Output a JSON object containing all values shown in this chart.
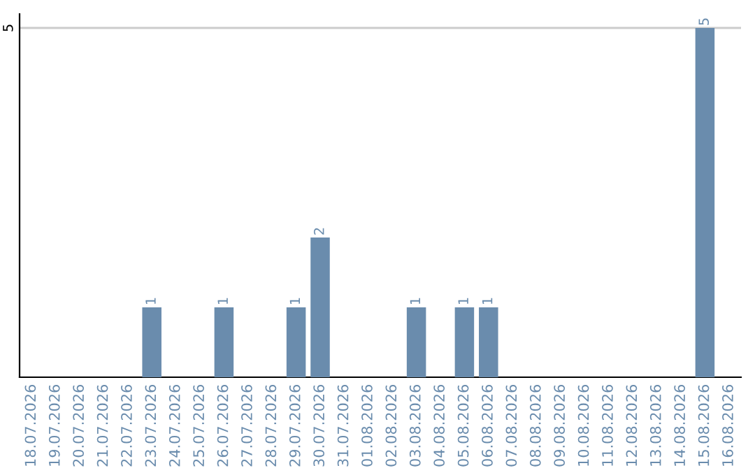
{
  "chart_data": {
    "type": "bar",
    "categories": [
      "18.07.2026",
      "19.07.2026",
      "20.07.2026",
      "21.07.2026",
      "22.07.2026",
      "23.07.2026",
      "24.07.2026",
      "25.07.2026",
      "26.07.2026",
      "27.07.2026",
      "28.07.2026",
      "29.07.2026",
      "30.07.2026",
      "31.07.2026",
      "01.08.2026",
      "02.08.2026",
      "03.08.2026",
      "04.08.2026",
      "05.08.2026",
      "06.08.2026",
      "07.08.2026",
      "08.08.2026",
      "09.08.2026",
      "10.08.2026",
      "11.08.2026",
      "12.08.2026",
      "13.08.2026",
      "14.08.2026",
      "15.08.2026",
      "16.08.2026"
    ],
    "values": [
      0,
      0,
      0,
      0,
      0,
      1,
      0,
      0,
      1,
      0,
      0,
      1,
      2,
      0,
      0,
      0,
      1,
      0,
      1,
      1,
      0,
      0,
      0,
      0,
      0,
      0,
      0,
      0,
      5,
      0
    ],
    "value_labels": [
      null,
      null,
      null,
      null,
      null,
      "1",
      null,
      null,
      "1",
      null,
      null,
      "1",
      "2",
      null,
      null,
      null,
      "1",
      null,
      "1",
      "1",
      null,
      null,
      null,
      null,
      null,
      null,
      null,
      null,
      "5",
      null
    ],
    "color": "#6a8cad",
    "ylim": [
      0,
      5.2
    ],
    "yticks": [
      5
    ],
    "grid": "y",
    "legend": false
  }
}
